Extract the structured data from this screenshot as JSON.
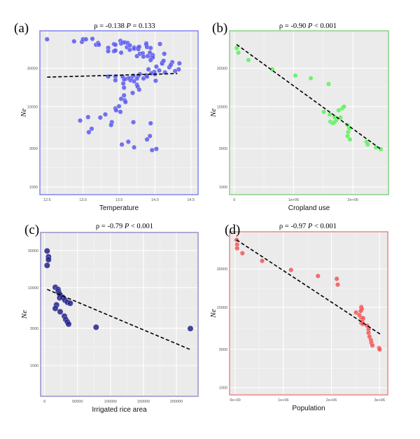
{
  "chart_data": [
    {
      "type": "scatter",
      "panel_label": "(a)",
      "title": {
        "rho": "ρ = -0.138",
        "p_label": "P",
        "p_value": "= 0.133"
      },
      "xlabel": "Temperature",
      "ylabel": "Ne",
      "yscale": "log",
      "xlim": [
        12.4,
        14.6
      ],
      "ylim": [
        800,
        88000
      ],
      "xticks": [
        12.5,
        13.0,
        13.5,
        14.0,
        14.5
      ],
      "xtick_labels": [
        "12.5",
        "13.0",
        "13.5",
        "14.0",
        "14.5"
      ],
      "yticks": [
        1000,
        3000,
        10000,
        30000
      ],
      "ytick_labels": [
        "1000",
        "3000",
        "10000",
        "30000"
      ],
      "grid": true,
      "color": "#5a5af0",
      "frame_color": "#7b7bf0",
      "fit_line": {
        "x": [
          12.5,
          14.31
        ],
        "y": [
          23300,
          25800
        ],
        "style": "dashed"
      },
      "x": [
        12.5,
        12.875,
        12.985,
        13.0,
        13.04,
        13.13,
        13.18,
        13.21,
        13.22,
        13.35,
        13.35,
        13.43,
        13.45,
        13.43,
        13.45,
        13.52,
        13.53,
        13.55,
        13.58,
        13.62,
        13.53,
        13.61,
        13.65,
        13.65,
        13.71,
        13.71,
        13.76,
        13.77,
        13.78,
        13.75,
        13.79,
        13.83,
        13.84,
        13.88,
        13.88,
        13.89,
        13.9,
        13.94,
        13.93,
        13.95,
        13.97,
        13.97,
        13.94,
        14.07,
        14.13,
        14.1,
        14.1,
        14.12,
        14.24,
        14.2,
        14.22,
        14.34,
        14.33,
        14.28,
        14.14,
        14.06,
        14.02,
        13.91,
        13.99,
        13.95,
        14.0,
        14.01,
        13.84,
        13.88,
        13.89,
        13.79,
        13.77,
        13.75,
        13.7,
        13.67,
        13.66,
        13.71,
        13.63,
        13.59,
        13.57,
        13.56,
        13.55,
        13.45,
        13.45,
        13.35,
        13.57,
        13.75,
        13.76,
        13.78,
        13.69,
        13.57,
        13.53,
        13.58,
        13.59,
        13.5,
        13.45,
        13.46,
        13.52,
        13.31,
        13.24,
        13.07,
        12.96,
        13.4,
        13.39,
        13.12,
        13.08,
        13.7,
        13.94,
        13.93,
        13.89,
        13.63,
        13.54,
        13.71,
        13.96,
        14.02
      ],
      "y": [
        69000,
        65000,
        64000,
        69000,
        69000,
        70000,
        59000,
        62000,
        59000,
        54000,
        49000,
        60000,
        59000,
        49000,
        50000,
        66000,
        61000,
        63000,
        63000,
        62000,
        47000,
        55000,
        51000,
        58000,
        54500,
        52700,
        53700,
        52000,
        55600,
        42600,
        45500,
        46100,
        42000,
        61400,
        59400,
        55200,
        42600,
        53700,
        47000,
        41700,
        43800,
        40900,
        38000,
        60300,
        45500,
        35300,
        34400,
        37200,
        35800,
        30900,
        33000,
        34600,
        29100,
        27800,
        26700,
        28200,
        31500,
        29100,
        27000,
        26000,
        25300,
        21000,
        22400,
        24600,
        23700,
        25400,
        24300,
        22400,
        24300,
        22700,
        21300,
        20700,
        22600,
        22100,
        21800,
        19400,
        23700,
        23700,
        21300,
        23700,
        17200,
        18700,
        17700,
        16300,
        14800,
        13800,
        12500,
        12000,
        11400,
        10100,
        9500,
        9000,
        8600,
        8000,
        7300,
        7400,
        6700,
        6400,
        5900,
        5300,
        4800,
        6400,
        6200,
        4300,
        3900,
        3650,
        3370,
        3110,
        2870,
        2970
      ]
    },
    {
      "type": "scatter",
      "panel_label": "(b)",
      "title": {
        "rho": "ρ = -0.90",
        "p_label": "P",
        "p_value": "< 0.001"
      },
      "xlabel": "Cropland use",
      "ylabel": "Ne",
      "yscale": "log",
      "xlim": [
        -79000,
        2600000
      ],
      "ylim": [
        800,
        88000
      ],
      "xticks": [
        0,
        1000000,
        2000000
      ],
      "xtick_labels": [
        "0",
        "1e+06",
        "2e+06"
      ],
      "yticks": [
        1000,
        3000,
        10000,
        30000
      ],
      "ytick_labels": [
        "1000",
        "3000",
        "10000",
        "30000"
      ],
      "grid": true,
      "color": "#5ef05e",
      "frame_color": "#7fcf7f",
      "fit_line": {
        "x": [
          40000,
          2470000
        ],
        "y": [
          59400,
          2950
        ],
        "style": "dashed"
      },
      "x": [
        40000,
        70000,
        240000,
        640000,
        1030000,
        1290000,
        1590000,
        1510000,
        1610000,
        1760000,
        1820000,
        1850000,
        1620000,
        1660000,
        1690000,
        1720000,
        1790000,
        1690000,
        1910000,
        1940000,
        1920000,
        1910000,
        1950000,
        2230000,
        2250000,
        2390000,
        2470000
      ],
      "y": [
        53700,
        47000,
        38000,
        29100,
        24400,
        22600,
        19100,
        8600,
        8000,
        9000,
        9500,
        10000,
        6500,
        6200,
        6400,
        6800,
        7300,
        7400,
        5900,
        5300,
        4800,
        4300,
        3900,
        3620,
        3370,
        3090,
        2950
      ]
    },
    {
      "type": "scatter",
      "panel_label": "(c)",
      "title": {
        "rho": "ρ = -0.79",
        "p_label": "P",
        "p_value": "< 0.001"
      },
      "xlabel": "Irrigated rice area",
      "ylabel": "Ne",
      "yscale": "log",
      "xlim": [
        -6000,
        232900
      ],
      "ylim": [
        402,
        51200
      ],
      "xticks": [
        0,
        50000,
        100000,
        150000,
        200000
      ],
      "xtick_labels": [
        "0",
        "50000",
        "100000",
        "150000",
        "200000"
      ],
      "yticks": [
        1000,
        3000,
        10000,
        30000
      ],
      "ytick_labels": [
        "1000",
        "3000",
        "10000",
        "30000"
      ],
      "grid": true,
      "color": "#25258c",
      "frame_color": "#8c8cc4",
      "fit_line": {
        "x": [
          3900,
          221200
        ],
        "y": [
          9500,
          1600
        ],
        "style": "dashed"
      },
      "x": [
        3900,
        6000,
        6000,
        3900,
        16300,
        20500,
        20900,
        21900,
        23400,
        23000,
        27600,
        31100,
        34700,
        38900,
        18100,
        16300,
        23700,
        30100,
        32200,
        34700,
        36500,
        78200,
        221200
      ],
      "y": [
        29600,
        24900,
        22900,
        19300,
        10100,
        9500,
        9000,
        8500,
        8100,
        7400,
        7500,
        6900,
        6500,
        6300,
        6000,
        5400,
        4900,
        4300,
        3900,
        3620,
        3400,
        3100,
        2980
      ]
    },
    {
      "type": "scatter",
      "panel_label": "(d)",
      "title": {
        "rho": "ρ = -0.97",
        "p_label": "P",
        "p_value": "< 0.001"
      },
      "xlabel": "Population",
      "ylabel": "Ne",
      "yscale": "log",
      "xlim": [
        -116000,
        3170000
      ],
      "ylim": [
        813,
        86900
      ],
      "xticks": [
        0,
        1000000,
        2000000,
        3000000
      ],
      "xtick_labels": [
        "0e+00",
        "1e+06",
        "2e+06",
        "3e+06"
      ],
      "yticks": [
        1000,
        3000,
        10000,
        30000
      ],
      "ytick_labels": [
        "1000",
        "3000",
        "10000",
        "30000"
      ],
      "grid": true,
      "color": "#f05858",
      "frame_color": "#e87f7f",
      "fit_line": {
        "x": [
          30000,
          3010000
        ],
        "y": [
          68800,
          4640
        ],
        "style": "dashed"
      },
      "x": [
        30000,
        40000,
        40000,
        150000,
        560000,
        1160000,
        1720000,
        2110000,
        2130000,
        2510000,
        2580000,
        2620000,
        2620000,
        2630000,
        2610000,
        2620000,
        2660000,
        2620000,
        2640000,
        2650000,
        2740000,
        2770000,
        2770000,
        2790000,
        2820000,
        2830000,
        2850000,
        2990000,
        3000000
      ],
      "y": [
        68800,
        60200,
        54100,
        47000,
        37700,
        29100,
        24500,
        22600,
        19100,
        8600,
        8000,
        10100,
        9800,
        9500,
        9000,
        7400,
        7300,
        6400,
        6600,
        6200,
        5900,
        5300,
        4800,
        4300,
        3900,
        3600,
        3350,
        3110,
        2990
      ]
    }
  ]
}
